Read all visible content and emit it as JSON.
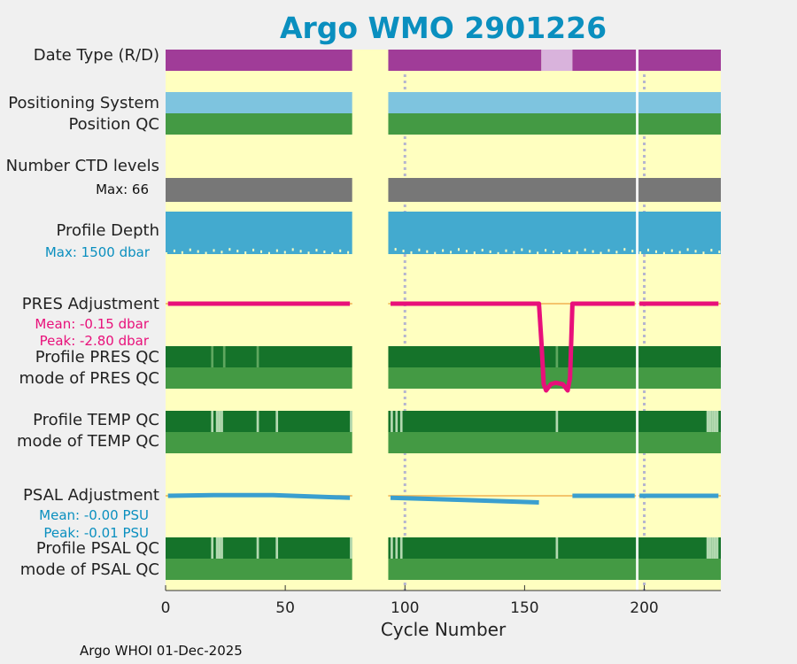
{
  "chart_data": {
    "type": "heatmap",
    "title": "Argo WMO 2901226",
    "xlabel": "Cycle Number",
    "xlim": [
      0,
      232
    ],
    "xticks": [
      0,
      50,
      100,
      150,
      200
    ],
    "gap_cycles": [
      [
        78,
        93
      ]
    ],
    "dotted_gridlines": [
      100,
      200
    ],
    "tracks": {
      "date_type": {
        "label": "Date Type (R/D)",
        "segments": [
          [
            0,
            78,
            "#a03c98"
          ],
          [
            93,
            157,
            "#a03c98"
          ],
          [
            157,
            170,
            "#d9b3dc"
          ],
          [
            170,
            232,
            "#a03c98"
          ]
        ]
      },
      "positioning_system": {
        "label": "Positioning System",
        "segments": [
          [
            0,
            78,
            "#7ec4df"
          ],
          [
            93,
            232,
            "#7ec4df"
          ]
        ]
      },
      "position_qc": {
        "label": "Position QC",
        "segments": [
          [
            0,
            78,
            "#449a44"
          ],
          [
            93,
            232,
            "#449a44"
          ]
        ]
      },
      "ctd_levels": {
        "label": "Number CTD levels",
        "max_text": "Max: 66",
        "segments": [
          [
            0,
            78,
            "#777777"
          ],
          [
            93,
            232,
            "#777777"
          ]
        ]
      },
      "profile_depth": {
        "label": "Profile Depth",
        "max_text": "Max: 1500 dbar",
        "segments": [
          [
            0,
            78,
            "#43aacf"
          ],
          [
            93,
            232,
            "#43aacf"
          ]
        ]
      },
      "pres_adjustment": {
        "label": "PRES Adjustment",
        "mean_text": "Mean: -0.15 dbar",
        "peak_text": "Peak: -2.80 dbar",
        "x": [
          1,
          77,
          null,
          94,
          156,
          157,
          158,
          159,
          161,
          163,
          166,
          168,
          169,
          170,
          196,
          null,
          198,
          231
        ],
        "y": [
          0,
          0,
          null,
          0,
          0,
          -1.2,
          -2.6,
          -2.8,
          -2.6,
          -2.55,
          -2.6,
          -2.8,
          -2.4,
          0,
          0,
          null,
          0,
          0
        ]
      },
      "profile_pres_qc": {
        "label": "Profile PRES QC",
        "base": "#15732a",
        "light_cycles": [
          19,
          24,
          38,
          163
        ]
      },
      "mode_pres_qc": {
        "label": "mode of PRES QC",
        "segments": [
          [
            0,
            78,
            "#449a44"
          ],
          [
            93,
            232,
            "#449a44"
          ]
        ]
      },
      "profile_temp_qc": {
        "label": "Profile TEMP QC",
        "base": "#15732a",
        "light_cycles": [
          19,
          21,
          22,
          23,
          38,
          46,
          77,
          94,
          96,
          98,
          163,
          226,
          227,
          228,
          229,
          230
        ],
        "light_color": "#b3d9b0"
      },
      "mode_temp_qc": {
        "label": "mode of TEMP QC",
        "segments": [
          [
            0,
            78,
            "#449a44"
          ],
          [
            93,
            232,
            "#449a44"
          ]
        ]
      },
      "psal_adjustment": {
        "label": "PSAL Adjustment",
        "mean_text": "Mean: -0.00 PSU",
        "peak_text": "Peak: -0.01 PSU",
        "x": [
          1,
          20,
          45,
          77,
          null,
          94,
          125,
          156,
          null,
          170,
          196,
          null,
          198,
          231
        ],
        "y": [
          0,
          0.0006,
          0.0006,
          -0.0018,
          null,
          -0.0018,
          -0.0036,
          -0.0058,
          null,
          0,
          0,
          null,
          0,
          0
        ]
      },
      "profile_psal_qc": {
        "label": "Profile PSAL QC",
        "base": "#15732a",
        "light_cycles": [
          19,
          21,
          22,
          23,
          38,
          46,
          77,
          94,
          96,
          98,
          163,
          226,
          227,
          228,
          229,
          230
        ],
        "light_color": "#b3d9b0"
      },
      "mode_psal_qc": {
        "label": "mode of PSAL QC",
        "segments": [
          [
            0,
            78,
            "#449a44"
          ],
          [
            93,
            232,
            "#449a44"
          ]
        ]
      }
    }
  },
  "footer": "Argo WHOI 01-Dec-2025",
  "colors": {
    "background": "#ffffc0",
    "gap": "#ffffc0",
    "pres_line": "#e8107a",
    "psal_line": "#3a9fcf",
    "zero_line": "#f0b050",
    "grid": "#b5b5cf"
  }
}
